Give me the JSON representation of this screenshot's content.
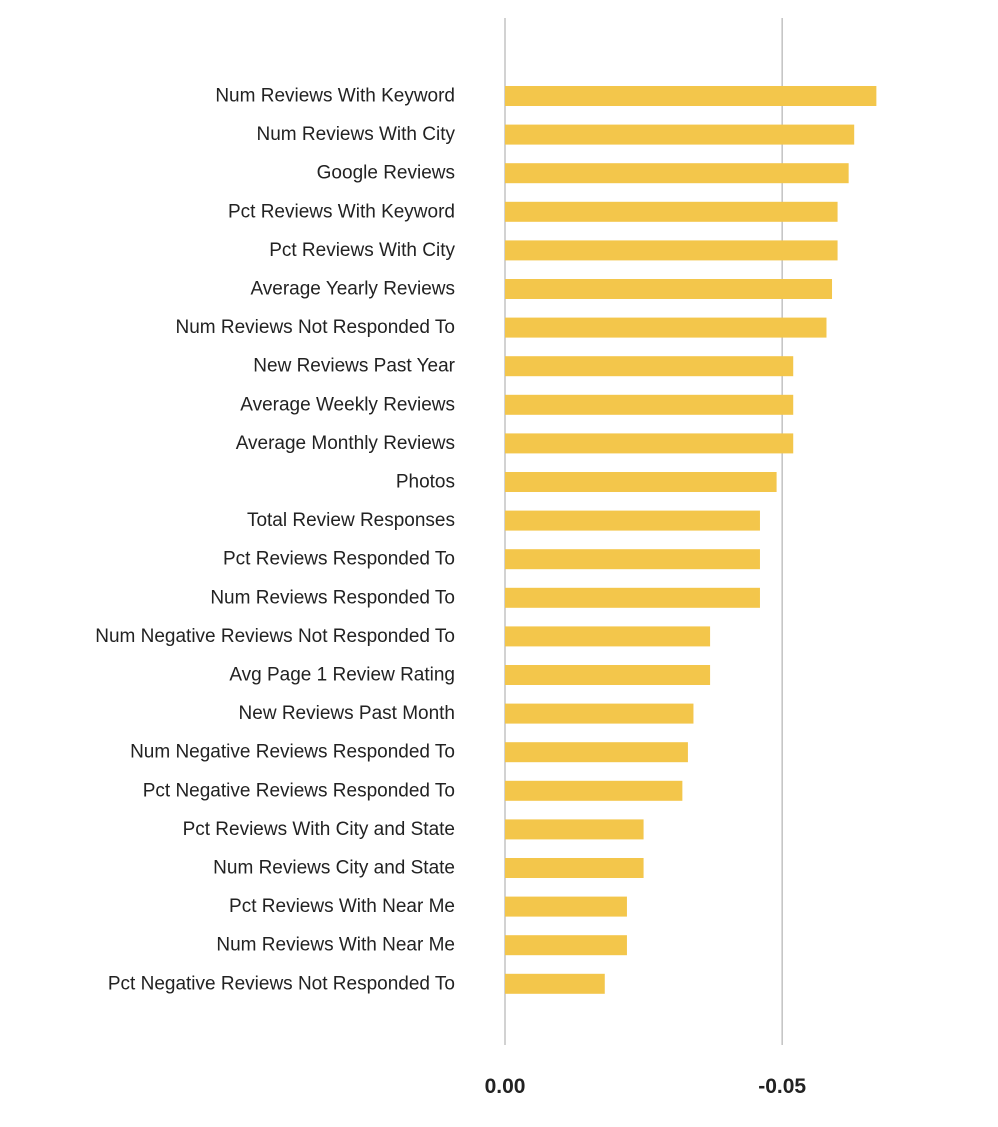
{
  "chart_data": {
    "type": "bar",
    "orientation": "horizontal",
    "title": "",
    "xlabel": "",
    "ylabel": "",
    "categories": [
      "Num Reviews With Keyword",
      "Num Reviews With City",
      "Google Reviews",
      "Pct Reviews With Keyword",
      "Pct Reviews With City",
      "Average Yearly Reviews",
      "Num Reviews Not Responded To",
      "New Reviews Past Year",
      "Average Weekly Reviews",
      "Average Monthly Reviews",
      "Photos",
      "Total Review Responses",
      "Pct Reviews Responded To",
      "Num Reviews Responded To",
      "Num Negative Reviews Not Responded To",
      "Avg Page 1 Review Rating",
      "New Reviews Past Month",
      "Num Negative Reviews Responded To",
      "Pct Negative Reviews Responded To",
      "Pct Reviews With City and State",
      "Num Reviews City and State",
      "Pct Reviews With Near Me",
      "Num Reviews With Near Me",
      "Pct Negative Reviews Not Responded To"
    ],
    "values": [
      -0.067,
      -0.063,
      -0.062,
      -0.06,
      -0.06,
      -0.059,
      -0.058,
      -0.052,
      -0.052,
      -0.052,
      -0.049,
      -0.046,
      -0.046,
      -0.046,
      -0.037,
      -0.037,
      -0.034,
      -0.033,
      -0.032,
      -0.025,
      -0.025,
      -0.022,
      -0.022,
      -0.018
    ],
    "xlim": [
      0,
      -0.0875
    ],
    "x_ticks": [
      0,
      -0.05
    ],
    "x_tick_labels": [
      "0.00",
      "-0.05"
    ],
    "grid": "vertical lines at ticks",
    "legend": "none",
    "bar_color": "#f3c64b",
    "grid_color": "#b3b3b3"
  }
}
